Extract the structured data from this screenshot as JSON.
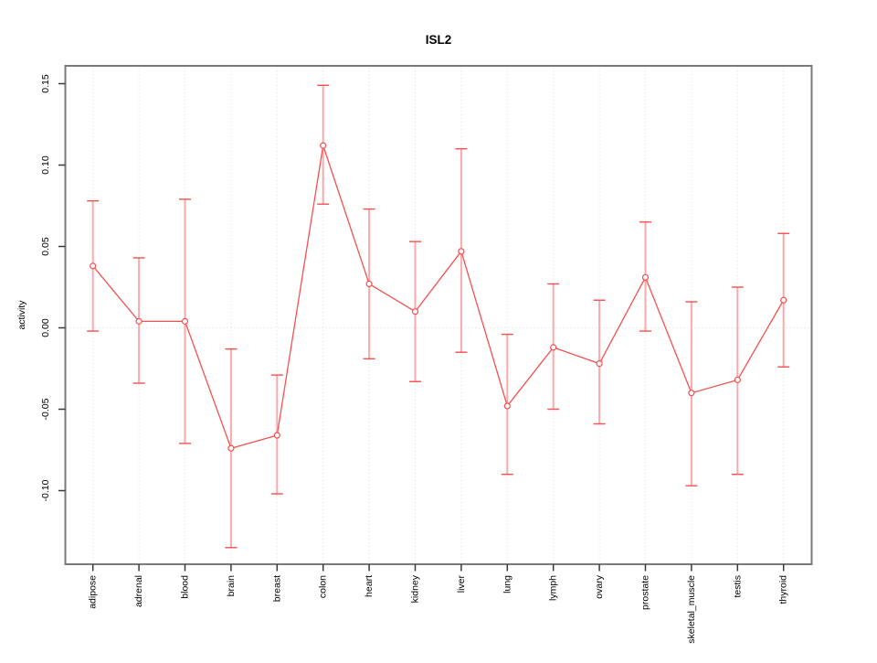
{
  "figure": {
    "colors": {
      "series": "#f84f4f",
      "errorbar_shaft": "#fbaaaa",
      "grid": "#dcdcdc",
      "zero_line": "#d8d8d8",
      "box_border": "#7a7a7a",
      "tick": "#3a3a3a",
      "text": "#000000",
      "background": "#ffffff"
    }
  },
  "chart_data": {
    "type": "line",
    "title": "ISL2",
    "xlabel": "",
    "ylabel": "activity",
    "categories": [
      "adipose",
      "adrenal",
      "blood",
      "brain",
      "breast",
      "colon",
      "heart",
      "kidney",
      "liver",
      "lung",
      "lymph",
      "ovary",
      "prostate",
      "skeletal_muscle",
      "testis",
      "thyroid"
    ],
    "series": [
      {
        "name": "activity",
        "marker": "open-circle",
        "values": [
          0.038,
          0.004,
          0.004,
          -0.074,
          -0.066,
          0.112,
          0.027,
          0.01,
          0.047,
          -0.048,
          -0.012,
          -0.022,
          0.031,
          -0.04,
          -0.032,
          0.017
        ],
        "error_low": [
          -0.002,
          -0.034,
          -0.071,
          -0.135,
          -0.102,
          0.076,
          -0.019,
          -0.033,
          -0.015,
          -0.09,
          -0.05,
          -0.059,
          -0.002,
          -0.097,
          -0.09,
          -0.024
        ],
        "error_high": [
          0.078,
          0.043,
          0.079,
          -0.013,
          -0.029,
          0.149,
          0.073,
          0.053,
          0.11,
          -0.004,
          0.027,
          0.017,
          0.065,
          0.016,
          0.025,
          0.058
        ]
      }
    ],
    "ylim": [
      -0.147,
      0.161
    ],
    "ytick_values": [
      -0.1,
      -0.05,
      0.0,
      0.05,
      0.1,
      0.15
    ],
    "ytick_labels": [
      "-0.10",
      "-0.05",
      "0.00",
      "0.05",
      "0.10",
      "0.15"
    ],
    "grid": {
      "vertical_dotted_per_category": true,
      "horizontal_zero_dotted": true
    },
    "legend": null
  }
}
